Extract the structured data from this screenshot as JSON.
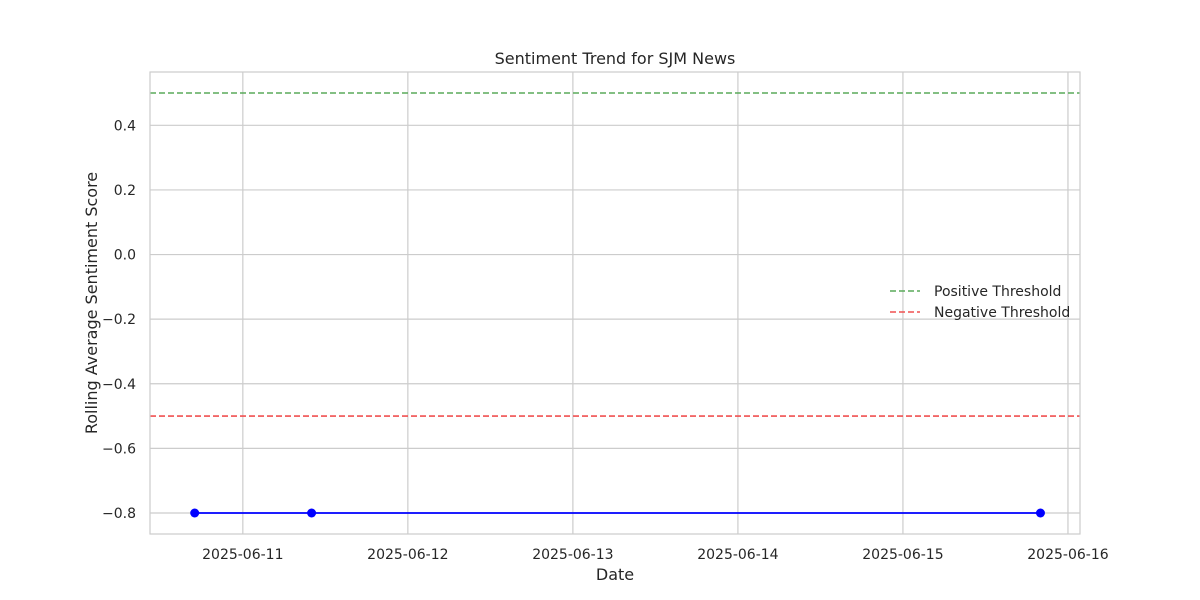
{
  "chart_data": {
    "type": "line",
    "title": "Sentiment Trend for SJM News",
    "xlabel": "Date",
    "ylabel": "Rolling Average Sentiment Score",
    "x_axis_type": "date",
    "xlim": [
      "2025-06-10T10:30",
      "2025-06-16T01:45"
    ],
    "ylim": [
      -0.865,
      0.565
    ],
    "x_ticks": [
      "2025-06-11",
      "2025-06-12",
      "2025-06-13",
      "2025-06-14",
      "2025-06-15",
      "2025-06-16"
    ],
    "y_ticks": [
      -0.8,
      -0.6,
      -0.4,
      -0.2,
      0.0,
      0.2,
      0.4
    ],
    "grid": true,
    "legend_position": "right",
    "series": [
      {
        "type": "line",
        "color": "#0000ff",
        "marker": "circle",
        "x": [
          "2025-06-10T17:00",
          "2025-06-11T10:00",
          "2025-06-15T20:00"
        ],
        "y": [
          -0.8,
          -0.8,
          -0.8
        ]
      }
    ],
    "reference_lines": [
      {
        "name": "Positive Threshold",
        "y": 0.5,
        "color": "#5aaa5a",
        "style": "dashed"
      },
      {
        "name": "Negative Threshold",
        "y": -0.5,
        "color": "#f05050",
        "style": "dashed"
      }
    ]
  }
}
